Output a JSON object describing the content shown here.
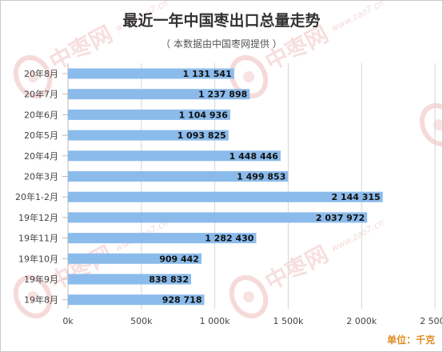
{
  "chart_data": {
    "type": "bar",
    "orientation": "horizontal",
    "title": "最近一年中国枣出口总量走势",
    "subtitle": "（ 本数据由中国枣网提供 ）",
    "unit_label": "单位：千克",
    "categories": [
      "20年8月",
      "20年7月",
      "20年6月",
      "20年5月",
      "20年4月",
      "20年3月",
      "20年1-2月",
      "19年12月",
      "19年11月",
      "19年10月",
      "19年9月",
      "19年8月"
    ],
    "values": [
      1131541,
      1237898,
      1104936,
      1093825,
      1448446,
      1499853,
      2144315,
      2037972,
      1282430,
      909442,
      838832,
      928718
    ],
    "value_labels": [
      "1 131 541",
      "1 237 898",
      "1 104 936",
      "1 093 825",
      "1 448 446",
      "1 499 853",
      "2 144 315",
      "2 037 972",
      "1 282 430",
      "909 442",
      "838 832",
      "928 718"
    ],
    "xlim": [
      0,
      2500000
    ],
    "x_ticks": [
      0,
      500000,
      1000000,
      1500000,
      2000000,
      2500000
    ],
    "x_tick_labels": [
      "0k",
      "500k",
      "1 000k",
      "1 500k",
      "2 000k",
      "2 500k"
    ],
    "grid": true,
    "bar_color": "#8bbbeb"
  },
  "watermark": {
    "text": "中枣网",
    "url": "www.zao7.cn",
    "color": "#e9a3a3"
  }
}
